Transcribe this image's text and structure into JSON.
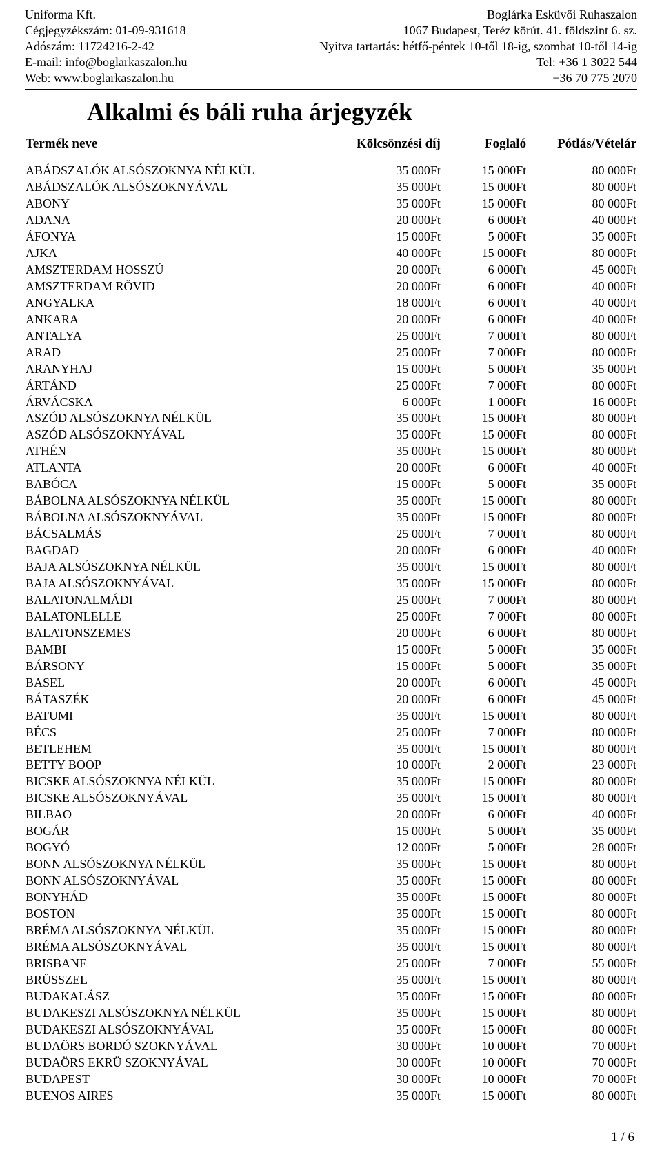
{
  "header": {
    "left": {
      "company": "Uniforma Kft.",
      "reg": "Cégjegyzékszám: 01-09-931618",
      "tax": "Adószám: 11724216-2-42",
      "email": "E-mail: info@boglarkaszalon.hu",
      "web": "Web: www.boglarkaszalon.hu"
    },
    "right": {
      "name": "Boglárka Esküvői Ruhaszalon",
      "address": "1067 Budapest, Teréz körút. 41. földszint 6. sz.",
      "hours": "Nyitva tartartás: hétfő-péntek 10-től 18-ig, szombat 10-től 14-ig",
      "tel1": "Tel: +36 1 3022 544",
      "tel2": "+36 70 775 2070"
    }
  },
  "title": "Alkalmi és báli ruha árjegyzék",
  "columns": {
    "name": "Termék neve",
    "rent": "Kölcsönzési díj",
    "deposit": "Foglaló",
    "price": "Pótlás/Vételár"
  },
  "rows": [
    {
      "n": "ABÁDSZALÓK ALSÓSZOKNYA NÉLKÜL",
      "a": "35 000Ft",
      "b": "15 000Ft",
      "c": "80 000Ft"
    },
    {
      "n": "ABÁDSZALÓK ALSÓSZOKNYÁVAL",
      "a": "35 000Ft",
      "b": "15 000Ft",
      "c": "80 000Ft"
    },
    {
      "n": "ABONY",
      "a": "35 000Ft",
      "b": "15 000Ft",
      "c": "80 000Ft"
    },
    {
      "n": "ADANA",
      "a": "20 000Ft",
      "b": "6 000Ft",
      "c": "40 000Ft"
    },
    {
      "n": "ÁFONYA",
      "a": "15 000Ft",
      "b": "5 000Ft",
      "c": "35 000Ft"
    },
    {
      "n": "AJKA",
      "a": "40 000Ft",
      "b": "15 000Ft",
      "c": "80 000Ft"
    },
    {
      "n": "AMSZTERDAM HOSSZÚ",
      "a": "20 000Ft",
      "b": "6 000Ft",
      "c": "45 000Ft"
    },
    {
      "n": "AMSZTERDAM RÖVID",
      "a": "20 000Ft",
      "b": "6 000Ft",
      "c": "40 000Ft"
    },
    {
      "n": "ANGYALKA",
      "a": "18 000Ft",
      "b": "6 000Ft",
      "c": "40 000Ft"
    },
    {
      "n": "ANKARA",
      "a": "20 000Ft",
      "b": "6 000Ft",
      "c": "40 000Ft"
    },
    {
      "n": "ANTALYA",
      "a": "25 000Ft",
      "b": "7 000Ft",
      "c": "80 000Ft"
    },
    {
      "n": "ARAD",
      "a": "25 000Ft",
      "b": "7 000Ft",
      "c": "80 000Ft"
    },
    {
      "n": "ARANYHAJ",
      "a": "15 000Ft",
      "b": "5 000Ft",
      "c": "35 000Ft"
    },
    {
      "n": "ÁRTÁND",
      "a": "25 000Ft",
      "b": "7 000Ft",
      "c": "80 000Ft"
    },
    {
      "n": "ÁRVÁCSKA",
      "a": "6 000Ft",
      "b": "1 000Ft",
      "c": "16 000Ft"
    },
    {
      "n": "ASZÓD ALSÓSZOKNYA NÉLKÜL",
      "a": "35 000Ft",
      "b": "15 000Ft",
      "c": "80 000Ft"
    },
    {
      "n": "ASZÓD ALSÓSZOKNYÁVAL",
      "a": "35 000Ft",
      "b": "15 000Ft",
      "c": "80 000Ft"
    },
    {
      "n": "ATHÉN",
      "a": "35 000Ft",
      "b": "15 000Ft",
      "c": "80 000Ft"
    },
    {
      "n": "ATLANTA",
      "a": "20 000Ft",
      "b": "6 000Ft",
      "c": "40 000Ft"
    },
    {
      "n": "BABÓCA",
      "a": "15 000Ft",
      "b": "5 000Ft",
      "c": "35 000Ft"
    },
    {
      "n": "BÁBOLNA ALSÓSZOKNYA NÉLKÜL",
      "a": "35 000Ft",
      "b": "15 000Ft",
      "c": "80 000Ft"
    },
    {
      "n": "BÁBOLNA ALSÓSZOKNYÁVAL",
      "a": "35 000Ft",
      "b": "15 000Ft",
      "c": "80 000Ft"
    },
    {
      "n": "BÁCSALMÁS",
      "a": "25 000Ft",
      "b": "7 000Ft",
      "c": "80 000Ft"
    },
    {
      "n": "BAGDAD",
      "a": "20 000Ft",
      "b": "6 000Ft",
      "c": "40 000Ft"
    },
    {
      "n": "BAJA ALSÓSZOKNYA NÉLKÜL",
      "a": "35 000Ft",
      "b": "15 000Ft",
      "c": "80 000Ft"
    },
    {
      "n": "BAJA ALSÓSZOKNYÁVAL",
      "a": "35 000Ft",
      "b": "15 000Ft",
      "c": "80 000Ft"
    },
    {
      "n": "BALATONALMÁDI",
      "a": "25 000Ft",
      "b": "7 000Ft",
      "c": "80 000Ft"
    },
    {
      "n": "BALATONLELLE",
      "a": "25 000Ft",
      "b": "7 000Ft",
      "c": "80 000Ft"
    },
    {
      "n": "BALATONSZEMES",
      "a": "20 000Ft",
      "b": "6 000Ft",
      "c": "80 000Ft"
    },
    {
      "n": "BAMBI",
      "a": "15 000Ft",
      "b": "5 000Ft",
      "c": "35 000Ft"
    },
    {
      "n": "BÁRSONY",
      "a": "15 000Ft",
      "b": "5 000Ft",
      "c": "35 000Ft"
    },
    {
      "n": "BASEL",
      "a": "20 000Ft",
      "b": "6 000Ft",
      "c": "45 000Ft"
    },
    {
      "n": "BÁTASZÉK",
      "a": "20 000Ft",
      "b": "6 000Ft",
      "c": "45 000Ft"
    },
    {
      "n": "BATUMI",
      "a": "35 000Ft",
      "b": "15 000Ft",
      "c": "80 000Ft"
    },
    {
      "n": "BÉCS",
      "a": "25 000Ft",
      "b": "7 000Ft",
      "c": "80 000Ft"
    },
    {
      "n": "BETLEHEM",
      "a": "35 000Ft",
      "b": "15 000Ft",
      "c": "80 000Ft"
    },
    {
      "n": "BETTY BOOP",
      "a": "10 000Ft",
      "b": "2 000Ft",
      "c": "23 000Ft"
    },
    {
      "n": "BICSKE ALSÓSZOKNYA NÉLKÜL",
      "a": "35 000Ft",
      "b": "15 000Ft",
      "c": "80 000Ft"
    },
    {
      "n": "BICSKE ALSÓSZOKNYÁVAL",
      "a": "35 000Ft",
      "b": "15 000Ft",
      "c": "80 000Ft"
    },
    {
      "n": "BILBAO",
      "a": "20 000Ft",
      "b": "6 000Ft",
      "c": "40 000Ft"
    },
    {
      "n": "BOGÁR",
      "a": "15 000Ft",
      "b": "5 000Ft",
      "c": "35 000Ft"
    },
    {
      "n": "BOGYÓ",
      "a": "12 000Ft",
      "b": "5 000Ft",
      "c": "28 000Ft"
    },
    {
      "n": "BONN ALSÓSZOKNYA NÉLKÜL",
      "a": "35 000Ft",
      "b": "15 000Ft",
      "c": "80 000Ft"
    },
    {
      "n": "BONN ALSÓSZOKNYÁVAL",
      "a": "35 000Ft",
      "b": "15 000Ft",
      "c": "80 000Ft"
    },
    {
      "n": "BONYHÁD",
      "a": "35 000Ft",
      "b": "15 000Ft",
      "c": "80 000Ft"
    },
    {
      "n": "BOSTON",
      "a": "35 000Ft",
      "b": "15 000Ft",
      "c": "80 000Ft"
    },
    {
      "n": "BRÉMA ALSÓSZOKNYA NÉLKÜL",
      "a": "35 000Ft",
      "b": "15 000Ft",
      "c": "80 000Ft"
    },
    {
      "n": "BRÉMA ALSÓSZOKNYÁVAL",
      "a": "35 000Ft",
      "b": "15 000Ft",
      "c": "80 000Ft"
    },
    {
      "n": "BRISBANE",
      "a": "25 000Ft",
      "b": "7 000Ft",
      "c": "55 000Ft"
    },
    {
      "n": "BRÜSSZEL",
      "a": "35 000Ft",
      "b": "15 000Ft",
      "c": "80 000Ft"
    },
    {
      "n": "BUDAKALÁSZ",
      "a": "35 000Ft",
      "b": "15 000Ft",
      "c": "80 000Ft"
    },
    {
      "n": "BUDAKESZI ALSÓSZOKNYA NÉLKÜL",
      "a": "35 000Ft",
      "b": "15 000Ft",
      "c": "80 000Ft"
    },
    {
      "n": "BUDAKESZI ALSÓSZOKNYÁVAL",
      "a": "35 000Ft",
      "b": "15 000Ft",
      "c": "80 000Ft"
    },
    {
      "n": "BUDAÖRS BORDÓ SZOKNYÁVAL",
      "a": "30 000Ft",
      "b": "10 000Ft",
      "c": "70 000Ft"
    },
    {
      "n": "BUDAÖRS EKRÜ SZOKNYÁVAL",
      "a": "30 000Ft",
      "b": "10 000Ft",
      "c": "70 000Ft"
    },
    {
      "n": "BUDAPEST",
      "a": "30 000Ft",
      "b": "10 000Ft",
      "c": "70 000Ft"
    },
    {
      "n": "BUENOS AIRES",
      "a": "35 000Ft",
      "b": "15 000Ft",
      "c": "80 000Ft"
    }
  ],
  "pageFooter": "1 / 6"
}
